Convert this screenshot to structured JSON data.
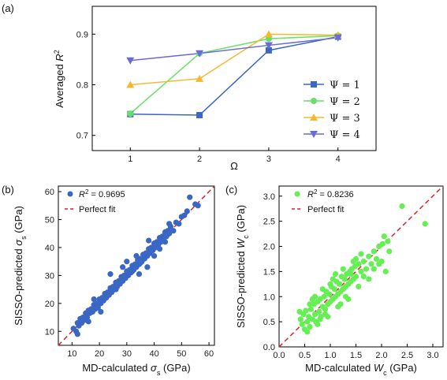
{
  "panels": [
    {
      "label": "(a)"
    },
    {
      "label": "(b)"
    },
    {
      "label": "(c)"
    }
  ],
  "chart_data": [
    {
      "id": "a",
      "type": "line",
      "xlabel": "Ω",
      "ylabel_main": "Averaged ",
      "ylabel_var": "R",
      "ylabel_sup": "2",
      "x": [
        1,
        2,
        3,
        4
      ],
      "xlim": [
        0.45,
        4.55
      ],
      "ylim": [
        0.67,
        0.955
      ],
      "xticks": [
        1,
        2,
        3,
        4
      ],
      "yticks": [
        0.7,
        0.8,
        0.9
      ],
      "ytick_labels": [
        "0.7",
        "0.8",
        "0.9"
      ],
      "legend_position": "center-right",
      "series": [
        {
          "name": "Ψ = 1",
          "color": "#3a66c4",
          "marker": "square",
          "values": [
            0.742,
            0.74,
            0.868,
            0.895
          ]
        },
        {
          "name": "Ψ = 2",
          "color": "#66e066",
          "marker": "circle",
          "values": [
            0.743,
            0.862,
            0.891,
            0.897
          ]
        },
        {
          "name": "Ψ = 3",
          "color": "#f5b82e",
          "marker": "triangle-up",
          "values": [
            0.8,
            0.812,
            0.9,
            0.898
          ]
        },
        {
          "name": "Ψ = 4",
          "color": "#6a6ad8",
          "marker": "triangle-down",
          "values": [
            0.848,
            0.862,
            0.878,
            0.893
          ]
        }
      ]
    },
    {
      "id": "b",
      "type": "scatter",
      "xlabel_main": "MD-calculated ",
      "xlabel_var": "σ",
      "xlabel_sub": "s",
      "xlabel_unit": " (GPa)",
      "ylabel_main": "SISSO-predicted ",
      "ylabel_var": "σ",
      "ylabel_sub": "s",
      "ylabel_unit": " (GPa)",
      "xlim": [
        5,
        62
      ],
      "ylim": [
        5,
        62
      ],
      "xticks": [
        10,
        20,
        30,
        40,
        50,
        60
      ],
      "yticks": [
        10,
        20,
        30,
        40,
        50,
        60
      ],
      "legend_position": "top-left",
      "legend": {
        "r2_var": "R",
        "r2_sup": "2",
        "r2_value": " = 0.9695",
        "fit_label": "Perfect fit"
      },
      "point_color": "#3a66c4",
      "fit_color": "#d62728",
      "points": [
        [
          10.5,
          11.0
        ],
        [
          11.5,
          10.0
        ],
        [
          12.0,
          13.0
        ],
        [
          12.5,
          12.0
        ],
        [
          13.0,
          14.5
        ],
        [
          13.5,
          13.0
        ],
        [
          14.0,
          15.0
        ],
        [
          14.5,
          14.0
        ],
        [
          15.0,
          16.5
        ],
        [
          15.5,
          15.0
        ],
        [
          16.0,
          17.5
        ],
        [
          16.5,
          16.5
        ],
        [
          17.0,
          18.0
        ],
        [
          17.5,
          17.0
        ],
        [
          18.0,
          19.5
        ],
        [
          18.5,
          18.0
        ],
        [
          19.0,
          20.0
        ],
        [
          19.5,
          18.5
        ],
        [
          20.0,
          21.5
        ],
        [
          20.5,
          20.0
        ],
        [
          21.0,
          22.0
        ],
        [
          21.5,
          21.0
        ],
        [
          22.0,
          23.5
        ],
        [
          22.5,
          22.0
        ],
        [
          23.0,
          24.0
        ],
        [
          23.5,
          23.0
        ],
        [
          24.0,
          25.5
        ],
        [
          24.5,
          24.0
        ],
        [
          25.0,
          26.0
        ],
        [
          25.5,
          25.0
        ],
        [
          26.0,
          27.5
        ],
        [
          26.5,
          26.0
        ],
        [
          27.0,
          28.0
        ],
        [
          27.5,
          27.0
        ],
        [
          28.0,
          29.5
        ],
        [
          28.5,
          28.0
        ],
        [
          29.0,
          30.0
        ],
        [
          29.5,
          29.0
        ],
        [
          30.0,
          31.5
        ],
        [
          30.5,
          30.0
        ],
        [
          31.0,
          32.0
        ],
        [
          31.5,
          31.0
        ],
        [
          32.0,
          33.5
        ],
        [
          32.5,
          32.0
        ],
        [
          33.0,
          34.0
        ],
        [
          33.5,
          33.0
        ],
        [
          34.0,
          35.5
        ],
        [
          34.5,
          34.0
        ],
        [
          35.0,
          36.0
        ],
        [
          35.5,
          35.0
        ],
        [
          36.0,
          37.5
        ],
        [
          36.5,
          36.0
        ],
        [
          37.0,
          38.0
        ],
        [
          37.5,
          37.0
        ],
        [
          38.0,
          39.5
        ],
        [
          38.5,
          38.0
        ],
        [
          39.0,
          40.0
        ],
        [
          39.5,
          39.0
        ],
        [
          40.0,
          41.5
        ],
        [
          40.5,
          40.0
        ],
        [
          41.0,
          42.0
        ],
        [
          41.5,
          41.0
        ],
        [
          42.0,
          43.5
        ],
        [
          42.5,
          42.0
        ],
        [
          43.0,
          44.0
        ],
        [
          43.5,
          43.0
        ],
        [
          44.0,
          45.5
        ],
        [
          44.5,
          44.0
        ],
        [
          45.0,
          46.0
        ],
        [
          45.5,
          45.0
        ],
        [
          46.0,
          47.5
        ],
        [
          47.0,
          46.0
        ],
        [
          48.0,
          49.0
        ],
        [
          49.0,
          48.5
        ],
        [
          50.0,
          51.0
        ],
        [
          51.0,
          51.5
        ],
        [
          52.0,
          53.0
        ],
        [
          53.0,
          58.0
        ],
        [
          55.0,
          55.5
        ],
        [
          56.0,
          55.0
        ],
        [
          24.0,
          30.5
        ],
        [
          26.0,
          25.0
        ],
        [
          30.0,
          35.0
        ],
        [
          32.0,
          31.5
        ],
        [
          33.5,
          37.0
        ],
        [
          37.5,
          33.0
        ],
        [
          40.0,
          37.0
        ],
        [
          42.0,
          39.5
        ],
        [
          18.0,
          21.5
        ],
        [
          16.0,
          13.5
        ],
        [
          20.5,
          17.0
        ],
        [
          12.0,
          9.0
        ],
        [
          28.5,
          33.0
        ],
        [
          34.5,
          30.5
        ],
        [
          45.5,
          48.5
        ],
        [
          35.0,
          34.5
        ],
        [
          38.0,
          42.5
        ],
        [
          44.0,
          42.0
        ]
      ]
    },
    {
      "id": "c",
      "type": "scatter",
      "xlabel_main": "MD-calculated ",
      "xlabel_var": "W",
      "xlabel_sub": "c",
      "xlabel_unit": " (GPa)",
      "ylabel_main": "SISSO-predicted ",
      "ylabel_var": "W",
      "ylabel_sub": "c",
      "ylabel_unit": " (GPa)",
      "xlim": [
        0,
        3.2
      ],
      "ylim": [
        0,
        3.2
      ],
      "xticks": [
        0.0,
        0.5,
        1.0,
        1.5,
        2.0,
        2.5,
        3.0
      ],
      "xtick_labels": [
        "0.0",
        "0.5",
        "1.0",
        "1.5",
        "2.0",
        "2.5",
        "3.0"
      ],
      "yticks": [
        0.0,
        0.5,
        1.0,
        1.5,
        2.0,
        2.5,
        3.0
      ],
      "ytick_labels": [
        "0.0",
        "0.5",
        "1.0",
        "1.5",
        "2.0",
        "2.5",
        "3.0"
      ],
      "legend_position": "top-left",
      "legend": {
        "r2_var": "R",
        "r2_sup": "2",
        "r2_value": " = 0.8236",
        "fit_label": "Perfect fit"
      },
      "point_color": "#66ee55",
      "fit_color": "#d62728",
      "points": [
        [
          0.42,
          0.55
        ],
        [
          0.45,
          0.45
        ],
        [
          0.48,
          0.65
        ],
        [
          0.5,
          0.35
        ],
        [
          0.52,
          0.72
        ],
        [
          0.55,
          0.5
        ],
        [
          0.58,
          0.6
        ],
        [
          0.6,
          0.4
        ],
        [
          0.62,
          0.75
        ],
        [
          0.65,
          0.55
        ],
        [
          0.68,
          0.85
        ],
        [
          0.7,
          0.65
        ],
        [
          0.72,
          0.5
        ],
        [
          0.75,
          0.9
        ],
        [
          0.78,
          0.7
        ],
        [
          0.8,
          0.95
        ],
        [
          0.82,
          0.6
        ],
        [
          0.85,
          0.8
        ],
        [
          0.88,
          1.0
        ],
        [
          0.9,
          0.75
        ],
        [
          0.92,
          1.1
        ],
        [
          0.95,
          0.85
        ],
        [
          0.98,
          1.05
        ],
        [
          1.0,
          0.9
        ],
        [
          1.02,
          1.2
        ],
        [
          1.05,
          0.95
        ],
        [
          1.08,
          1.15
        ],
        [
          1.1,
          1.0
        ],
        [
          1.12,
          1.3
        ],
        [
          1.15,
          1.05
        ],
        [
          1.18,
          1.25
        ],
        [
          1.2,
          1.1
        ],
        [
          1.22,
          1.4
        ],
        [
          1.25,
          1.15
        ],
        [
          1.28,
          1.35
        ],
        [
          1.3,
          1.2
        ],
        [
          1.32,
          1.45
        ],
        [
          1.35,
          1.25
        ],
        [
          1.38,
          1.5
        ],
        [
          1.4,
          1.3
        ],
        [
          1.42,
          1.55
        ],
        [
          1.45,
          1.35
        ],
        [
          1.48,
          1.6
        ],
        [
          1.5,
          1.4
        ],
        [
          1.55,
          1.65
        ],
        [
          1.6,
          1.5
        ],
        [
          1.65,
          1.7
        ],
        [
          1.7,
          1.55
        ],
        [
          1.75,
          1.8
        ],
        [
          1.8,
          1.65
        ],
        [
          1.85,
          1.9
        ],
        [
          1.9,
          1.75
        ],
        [
          1.95,
          2.0
        ],
        [
          2.0,
          1.7
        ],
        [
          2.05,
          2.2
        ],
        [
          2.08,
          1.5
        ],
        [
          2.12,
          2.1
        ],
        [
          2.15,
          1.9
        ],
        [
          2.4,
          2.8
        ],
        [
          2.85,
          2.45
        ],
        [
          0.55,
          0.3
        ],
        [
          0.65,
          0.95
        ],
        [
          0.75,
          0.45
        ],
        [
          0.85,
          1.15
        ],
        [
          0.95,
          0.6
        ],
        [
          1.05,
          1.35
        ],
        [
          1.15,
          0.8
        ],
        [
          1.25,
          1.55
        ],
        [
          1.35,
          0.95
        ],
        [
          1.45,
          1.7
        ],
        [
          1.55,
          1.2
        ],
        [
          1.65,
          1.4
        ],
        [
          1.75,
          1.35
        ],
        [
          1.85,
          1.55
        ],
        [
          1.95,
          1.65
        ],
        [
          2.02,
          2.05
        ],
        [
          0.4,
          0.7
        ],
        [
          0.6,
          0.85
        ],
        [
          0.8,
          0.55
        ],
        [
          1.0,
          1.25
        ],
        [
          1.2,
          0.85
        ],
        [
          1.4,
          1.45
        ],
        [
          1.6,
          1.85
        ],
        [
          0.7,
          1.0
        ],
        [
          0.9,
          0.65
        ],
        [
          1.1,
          1.45
        ],
        [
          1.3,
          1.0
        ],
        [
          1.5,
          1.75
        ]
      ]
    }
  ]
}
